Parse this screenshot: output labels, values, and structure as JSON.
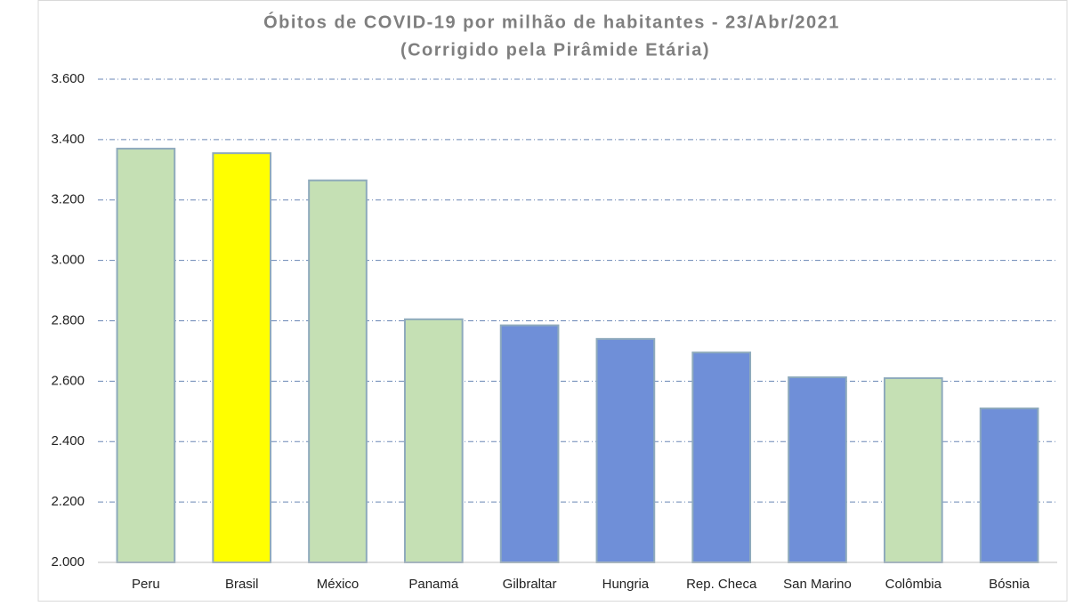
{
  "chart_data": {
    "type": "bar",
    "title": "Óbitos de COVID-19 por milhão de habitantes  - 23/Abr/2021",
    "subtitle": "(Corrigido pela Pirâmide Etária)",
    "categories": [
      "Peru",
      "Brasil",
      "México",
      "Panamá",
      "Gilbraltar",
      "Hungria",
      "Rep. Checa",
      "San Marino",
      "Colômbia",
      "Bósnia"
    ],
    "values": [
      3370,
      3355,
      3265,
      2805,
      2785,
      2740,
      2695,
      2613,
      2610,
      2510
    ],
    "colors": [
      "#c5e0b4",
      "#ffff00",
      "#c5e0b4",
      "#c5e0b4",
      "#6f8fd8",
      "#6f8fd8",
      "#6f8fd8",
      "#6f8fd8",
      "#c5e0b4",
      "#6f8fd8"
    ],
    "ylim": [
      2000,
      3600
    ],
    "yticks": [
      {
        "value": 2000,
        "label": "2.000"
      },
      {
        "value": 2200,
        "label": "2.200"
      },
      {
        "value": 2400,
        "label": "2.400"
      },
      {
        "value": 2600,
        "label": "2.600"
      },
      {
        "value": 2800,
        "label": "2.800"
      },
      {
        "value": 3000,
        "label": "3.000"
      },
      {
        "value": 3200,
        "label": "3.200"
      },
      {
        "value": 3400,
        "label": "3.400"
      },
      {
        "value": 3600,
        "label": "3.600"
      }
    ],
    "grid": true
  }
}
